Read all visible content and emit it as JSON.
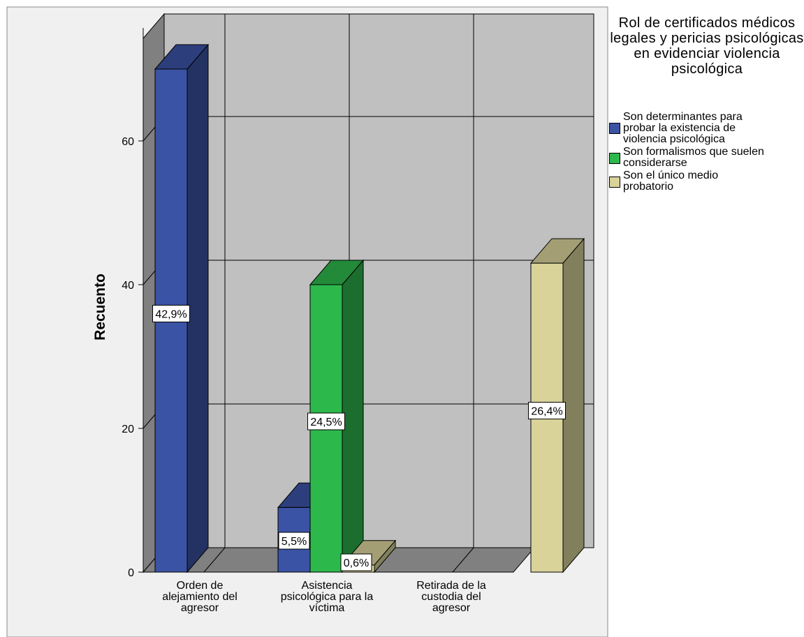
{
  "legend_title": "Rol de certificados médicos legales y pericias psicológicas en evidenciar violencia psicológica",
  "chart_data": {
    "type": "bar",
    "style": "3d-clustered",
    "ylabel": "Recuento",
    "xlabel": "",
    "ylim": [
      0,
      76
    ],
    "yticks": [
      0,
      20,
      40,
      60
    ],
    "grid": true,
    "legend_position": "right",
    "categories": [
      "Orden de alejamiento del agresor",
      "Asistencia psicológica para la víctima",
      "Retirada de la custodia del agresor"
    ],
    "category_label_lines": [
      [
        "Orden de",
        "alejamiento del",
        "agresor"
      ],
      [
        "Asistencia",
        "psicológica para la",
        "víctima"
      ],
      [
        "Retirada de la",
        "custodia del",
        "agresor"
      ]
    ],
    "series": [
      {
        "name": "Son determinantes para probar la existencia de violencia psicológica",
        "color": "#3B53A4",
        "values": [
          70,
          9,
          0
        ],
        "labels": [
          "42,9%",
          "5,5%",
          ""
        ]
      },
      {
        "name": "Son formalismos que suelen considerarse",
        "color": "#2DB84C",
        "values": [
          0,
          40,
          0
        ],
        "labels": [
          "",
          "24,5%",
          ""
        ]
      },
      {
        "name": "Son el único medio probatorio",
        "color": "#D9D39A",
        "values": [
          0,
          1,
          43
        ],
        "labels": [
          "",
          "0,6%",
          "26,4%"
        ]
      }
    ]
  },
  "legend_items": [
    {
      "lines": [
        "Son determinantes para",
        "probar la existencia de",
        "violencia psicológica"
      ],
      "color": "#3B53A4"
    },
    {
      "lines": [
        "Son formalismos que suelen",
        "considerarse"
      ],
      "color": "#2DB84C"
    },
    {
      "lines": [
        "Son el único medio",
        "probatorio"
      ],
      "color": "#D9D39A"
    }
  ]
}
